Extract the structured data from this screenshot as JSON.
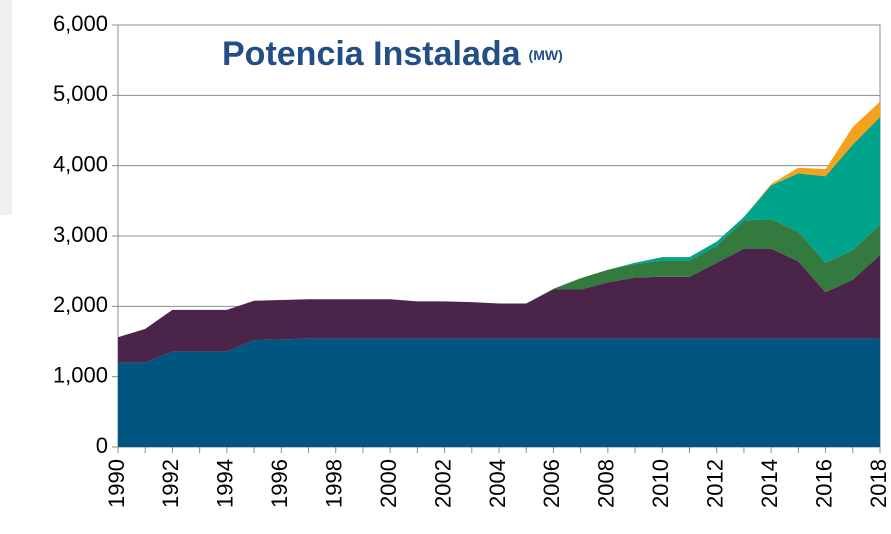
{
  "chart_data": {
    "type": "stacked_area",
    "title": "Potencia Instalada",
    "subtitle": "(MW)",
    "x": [
      1990,
      1991,
      1992,
      1993,
      1994,
      1995,
      1996,
      1997,
      1998,
      1999,
      2000,
      2001,
      2002,
      2003,
      2004,
      2005,
      2006,
      2007,
      2008,
      2009,
      2010,
      2011,
      2012,
      2013,
      2014,
      2015,
      2016,
      2017,
      2018
    ],
    "series": [
      {
        "color": "#005581",
        "values": [
          1200,
          1200,
          1360,
          1360,
          1360,
          1520,
          1530,
          1540,
          1540,
          1540,
          1540,
          1540,
          1540,
          1540,
          1540,
          1540,
          1540,
          1540,
          1540,
          1540,
          1540,
          1540,
          1540,
          1540,
          1540,
          1540,
          1540,
          1540,
          1540
        ]
      },
      {
        "color": "#4b2449",
        "values": [
          360,
          480,
          590,
          590,
          590,
          560,
          560,
          560,
          560,
          560,
          560,
          530,
          530,
          520,
          500,
          500,
          700,
          700,
          800,
          870,
          880,
          880,
          1080,
          1280,
          1280,
          1100,
          660,
          840,
          1190
        ]
      },
      {
        "color": "#347a3e",
        "values": [
          0,
          0,
          0,
          0,
          0,
          0,
          0,
          0,
          0,
          0,
          0,
          0,
          0,
          0,
          0,
          0,
          10,
          160,
          180,
          190,
          230,
          230,
          240,
          400,
          420,
          420,
          420,
          420,
          430
        ]
      },
      {
        "color": "#00a38c",
        "values": [
          0,
          0,
          0,
          0,
          0,
          0,
          0,
          0,
          0,
          0,
          0,
          0,
          0,
          0,
          0,
          0,
          0,
          0,
          0,
          20,
          50,
          50,
          60,
          50,
          480,
          830,
          1230,
          1500,
          1530
        ]
      },
      {
        "color": "#f4a11d",
        "values": [
          0,
          0,
          0,
          0,
          0,
          0,
          0,
          0,
          0,
          0,
          0,
          0,
          0,
          0,
          0,
          0,
          0,
          0,
          0,
          0,
          0,
          0,
          0,
          0,
          20,
          80,
          100,
          250,
          220
        ]
      }
    ],
    "xlim": [
      1990,
      2018
    ],
    "xticks": [
      1990,
      1992,
      1994,
      1996,
      1998,
      2000,
      2002,
      2004,
      2006,
      2008,
      2010,
      2012,
      2014,
      2016,
      2018
    ],
    "ylim": [
      0,
      6000
    ],
    "yticks": [
      0,
      {
        "value": 1000,
        "label": "1,000"
      },
      {
        "value": 2000,
        "label": "2,000"
      },
      {
        "value": 3000,
        "label": "3,000"
      },
      {
        "value": 4000,
        "label": "4,000"
      },
      {
        "value": 5000,
        "label": "5,000"
      },
      {
        "value": 6000,
        "label": "6,000"
      }
    ],
    "grid": true
  }
}
